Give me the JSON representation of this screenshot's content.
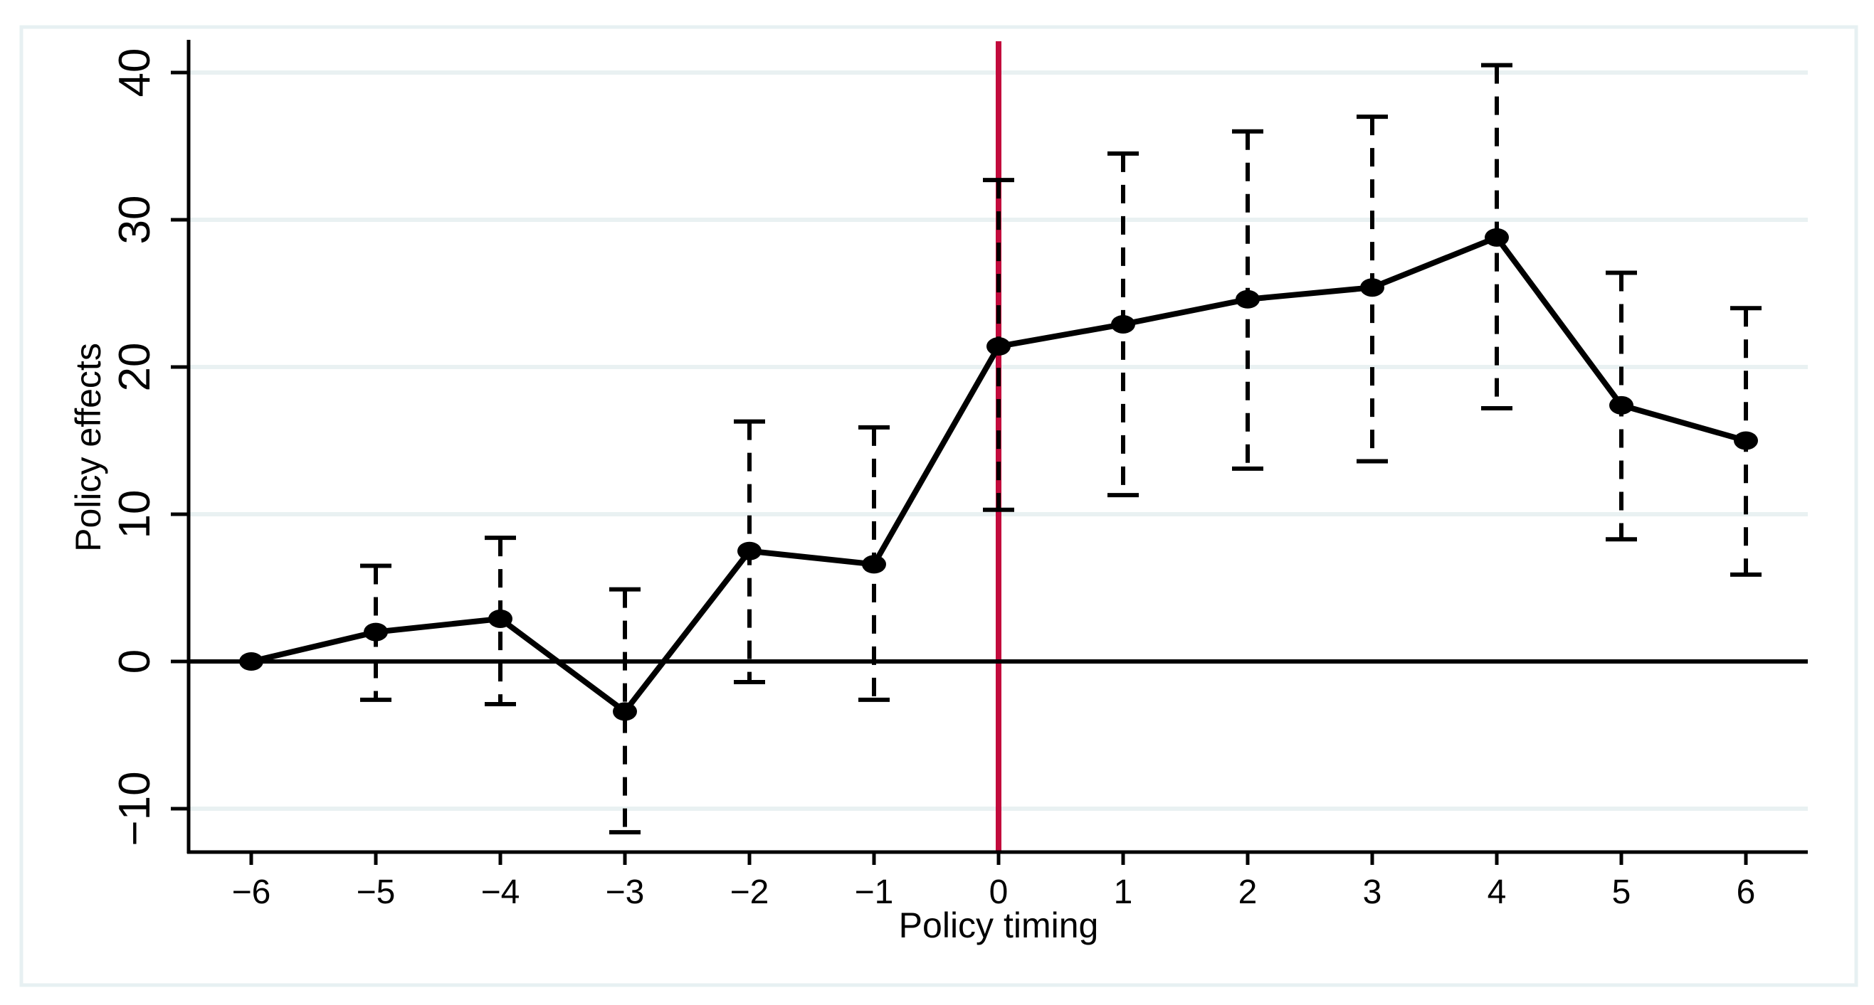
{
  "figure": {
    "background_color": "#ffffff",
    "border_color": "#e7f0f2",
    "gridline_color": "#e9f1f2",
    "axis_color": "#000000",
    "series_color": "#000000",
    "reference_vline_color": "#c20a3c"
  },
  "chart_data": {
    "type": "line",
    "title": "",
    "xlabel": "Policy timing",
    "ylabel": "Policy effects",
    "xlim": [
      -6.5,
      6.5
    ],
    "ylim": [
      -12.9,
      42.0
    ],
    "grid": "horizontal-only",
    "legend_position": "none",
    "x_tick_labels": [
      "−6",
      "−5",
      "−4",
      "−3",
      "−2",
      "−1",
      "0",
      "1",
      "2",
      "3",
      "4",
      "5",
      "6"
    ],
    "y_tick_values": [
      -10,
      0,
      10,
      20,
      30,
      40
    ],
    "y_tick_labels": [
      "−10",
      "0",
      "10",
      "20",
      "30",
      "40"
    ],
    "y_gridline_values": [
      40,
      30,
      20,
      10,
      -10
    ],
    "zero_hline_y": 0,
    "reference_vline_x": 0,
    "series": [
      {
        "name": "Policy effects",
        "marker": "filled-circle",
        "line_style": "solid",
        "ci_style": "dashed-capped",
        "points": [
          {
            "x": -6,
            "estimate": 0.0,
            "ci_lower": null,
            "ci_upper": null
          },
          {
            "x": -5,
            "estimate": 2.0,
            "ci_lower": -2.6,
            "ci_upper": 6.5
          },
          {
            "x": -4,
            "estimate": 2.9,
            "ci_lower": -2.9,
            "ci_upper": 8.4
          },
          {
            "x": -3,
            "estimate": -3.4,
            "ci_lower": -11.6,
            "ci_upper": 4.9
          },
          {
            "x": -2,
            "estimate": 7.5,
            "ci_lower": -1.4,
            "ci_upper": 16.3
          },
          {
            "x": -1,
            "estimate": 6.6,
            "ci_lower": -2.6,
            "ci_upper": 15.9
          },
          {
            "x": 0,
            "estimate": 21.4,
            "ci_lower": 10.3,
            "ci_upper": 32.7
          },
          {
            "x": 1,
            "estimate": 22.9,
            "ci_lower": 11.3,
            "ci_upper": 34.5
          },
          {
            "x": 2,
            "estimate": 24.6,
            "ci_lower": 13.1,
            "ci_upper": 36.0
          },
          {
            "x": 3,
            "estimate": 25.4,
            "ci_lower": 13.6,
            "ci_upper": 37.0
          },
          {
            "x": 4,
            "estimate": 28.8,
            "ci_lower": 17.2,
            "ci_upper": 40.5
          },
          {
            "x": 5,
            "estimate": 17.4,
            "ci_lower": 8.3,
            "ci_upper": 26.4
          },
          {
            "x": 6,
            "estimate": 15.0,
            "ci_lower": 5.9,
            "ci_upper": 24.0
          }
        ]
      }
    ]
  }
}
